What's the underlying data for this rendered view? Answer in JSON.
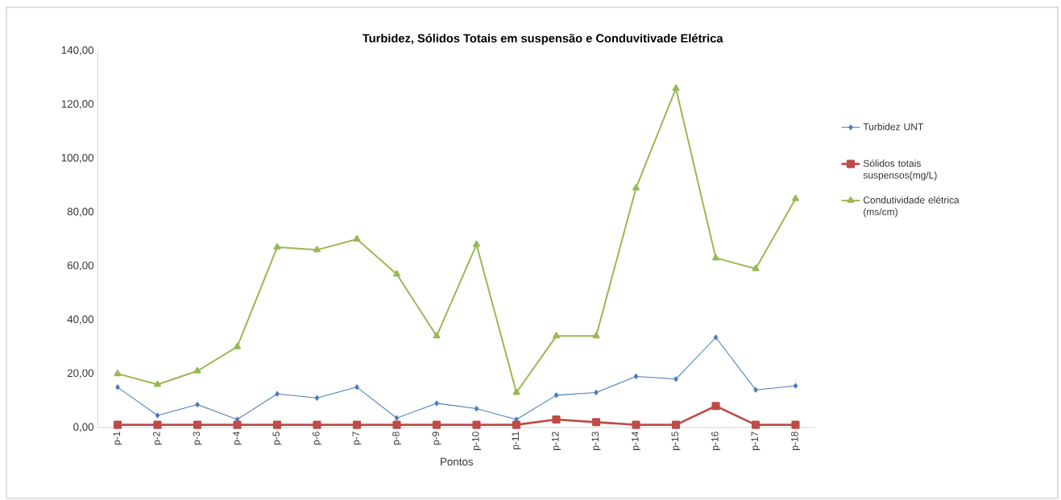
{
  "chart_data": {
    "type": "line",
    "title": "Turbidez, Sólidos Totais em suspensão e Conduvitivade Elétrica",
    "xlabel": "Pontos",
    "categories": [
      "p-1",
      "p-2",
      "p-3",
      "p-4",
      "p-5",
      "p-6",
      "p-7",
      "p-8",
      "p-9",
      "p-10",
      "p-11",
      "p-12",
      "p-13",
      "p-14",
      "p-15",
      "p-16",
      "p-17",
      "p-18"
    ],
    "series": [
      {
        "name": "Turbidez  UNT",
        "color": "#4a7ebb",
        "marker": "diamond",
        "values": [
          15,
          4.5,
          8.5,
          3,
          12.5,
          11,
          15,
          3.5,
          9,
          7,
          3,
          12,
          13,
          19,
          18,
          33.5,
          14,
          15.5
        ]
      },
      {
        "name": "Sólidos totais suspensos(mg/L)",
        "color": "#be4b48",
        "marker": "square",
        "values": [
          1,
          1,
          1,
          1,
          1,
          1,
          1,
          1,
          1,
          1,
          1,
          3,
          2,
          1,
          1,
          8,
          1,
          1
        ]
      },
      {
        "name": "Condutividade elétrica (ms/cm)",
        "color": "#98b954",
        "marker": "triangle",
        "values": [
          20,
          16,
          21,
          30,
          67,
          66,
          70,
          57,
          34,
          68,
          13,
          34,
          34,
          89,
          126,
          63,
          59,
          85
        ]
      }
    ],
    "ylim": [
      0,
      140
    ],
    "yticks": [
      {
        "value": 0,
        "label": "0,00"
      },
      {
        "value": 20,
        "label": "20,00"
      },
      {
        "value": 40,
        "label": "40,00"
      },
      {
        "value": 60,
        "label": "60,00"
      },
      {
        "value": 80,
        "label": "80,00"
      },
      {
        "value": 100,
        "label": "100,00"
      },
      {
        "value": 120,
        "label": "120,00"
      },
      {
        "value": 140,
        "label": "140,00"
      }
    ],
    "grid": false,
    "legend": "right"
  }
}
